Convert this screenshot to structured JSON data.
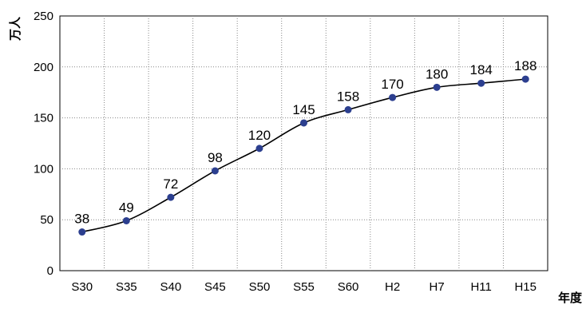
{
  "chart_data": {
    "type": "line",
    "categories": [
      "S30",
      "S35",
      "S40",
      "S45",
      "S50",
      "S55",
      "S60",
      "H2",
      "H7",
      "H11",
      "H15"
    ],
    "series": [
      {
        "values": [
          38,
          49,
          72,
          98,
          120,
          145,
          158,
          170,
          180,
          184,
          188
        ]
      }
    ],
    "data_labels": [
      "38",
      "49",
      "72",
      "98",
      "120",
      "145",
      "158",
      "170",
      "180",
      "184",
      "188"
    ],
    "ylim": [
      0,
      250
    ],
    "yticks": [
      0,
      50,
      100,
      150,
      200,
      250
    ],
    "ylabel": "万人",
    "xlabel": "年度",
    "grid": "dotted",
    "line_color": "#000000",
    "marker_color": "#2c3f8f",
    "smooth": true
  }
}
